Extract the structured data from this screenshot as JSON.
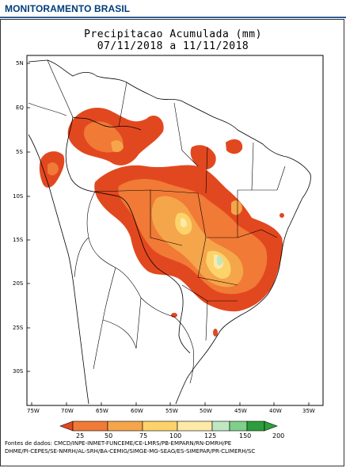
{
  "header": {
    "title": "MONITORAMENTO BRASIL"
  },
  "map": {
    "title_line1": "Precipitacao Acumulada (mm)",
    "title_line2": "07/11/2018 a 11/11/2018",
    "lat_labels": [
      "5N",
      "EQ",
      "5S",
      "10S",
      "15S",
      "20S",
      "25S",
      "30S"
    ],
    "lon_labels": [
      "75W",
      "70W",
      "65W",
      "60W",
      "55W",
      "50W",
      "45W",
      "40W",
      "35W"
    ]
  },
  "colorbar": {
    "ticks": [
      "25",
      "50",
      "75",
      "100",
      "125",
      "150",
      "200"
    ],
    "colors": [
      "#e2481f",
      "#f07a36",
      "#f5a54a",
      "#fbd36a",
      "#fde9a8",
      "#bfe7c1",
      "#7fd08a",
      "#2e9e3c"
    ],
    "unit": "mm"
  },
  "credits": {
    "line1": "Fontes de dados: CMCD/INPE-INMET-FUNCEME/CE-LMRS/PB-EMPARN/RN-DMRH/PE",
    "line2": "DHME/PI-CEPES/SE-NMRH/AL-SRH/BA-CEMIG/SIMGE-MG-SEAG/ES-SIMEPAR/PR-CLIMERH/SC"
  }
}
